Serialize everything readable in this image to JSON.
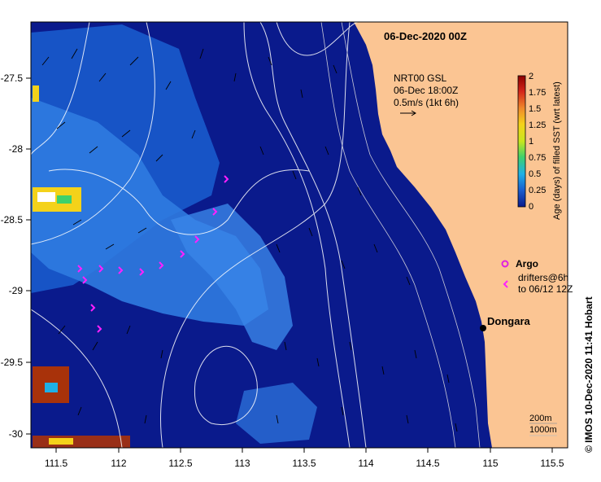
{
  "header": {
    "title": "06-Dec-2020 00Z"
  },
  "overlay": {
    "product": "NRT00 GSL",
    "time": "06-Dec 18:00Z",
    "scale": "0.5m/s (1kt 6h)"
  },
  "colorbar": {
    "label": "Age (days) of filled SST (wrt latest)",
    "ticks": [
      "2",
      "1.75",
      "1.5",
      "1.25",
      "1",
      "0.75",
      "0.5",
      "0.25",
      "0"
    ],
    "stops": [
      "#8b0000",
      "#d4261a",
      "#f08a2a",
      "#f4d21a",
      "#c8e61e",
      "#3fd16b",
      "#1eb0e6",
      "#1a5fd0",
      "#0a1a8c"
    ]
  },
  "legend": {
    "argo": "Argo",
    "drifters": "drifters@6h",
    "drifters_to": "to 06/12 12Z",
    "argo_color": "#e020e0",
    "drifter_color": "#ff20ff"
  },
  "places": {
    "town": "Dongara"
  },
  "axes": {
    "lon_labels": [
      "111.5",
      "112",
      "112.5",
      "113",
      "113.5",
      "114",
      "114.5",
      "115",
      "115.5"
    ],
    "lat_labels": [
      "-27.5",
      "-28",
      "-28.5",
      "-29",
      "-29.5",
      "-30"
    ]
  },
  "contours": {
    "c1": "200m",
    "c2": "1000m"
  },
  "credit": {
    "text": "© IMOS 10-Dec-2020 11:41 Hobart"
  },
  "colors": {
    "land": "#fbc593",
    "ocean_deep": "#0a1a8c",
    "ocean_mid": "#1a5fd0",
    "ocean_light": "#3a86e8"
  }
}
